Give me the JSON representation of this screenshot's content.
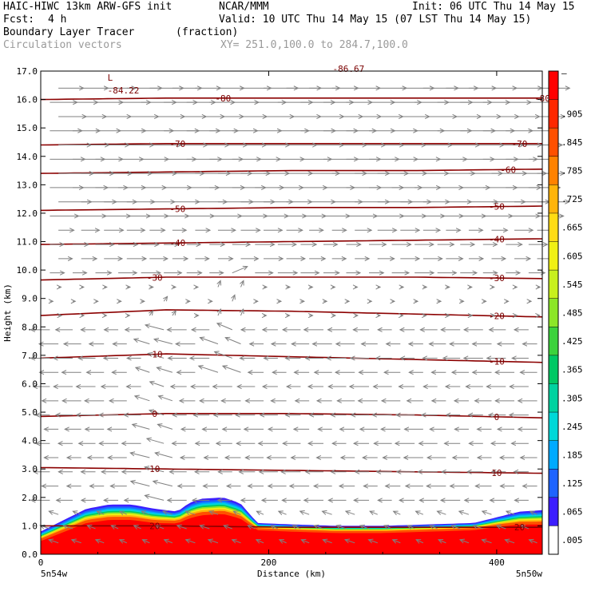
{
  "header": {
    "model": "HAIC-HIWC 13km ARW-GFS init",
    "center": "NCAR/MMM",
    "init": "Init: 06 UTC Thu 14 May 15",
    "fcst_label": "Fcst:",
    "fcst_value": "4 h",
    "valid": "Valid: 10 UTC Thu 14 May 15 (07 LST Thu 14 May 15)",
    "field_name": "Boundary Layer Tracer",
    "field_units": "(fraction)",
    "vector_name": "Circulation vectors",
    "xsec_endpoints": "XY= 251.0,100.0 to 284.7,100.0"
  },
  "colors": {
    "contour": "#8b0000",
    "vector": "#808080",
    "shading_low": "#1e3cff",
    "shading_high": "#ff0000"
  },
  "chart_data": {
    "type": "heatmap",
    "xlabel": "Distance (km)",
    "ylabel": "Height (km)",
    "xlim": [
      0,
      440
    ],
    "ylim": [
      0,
      17
    ],
    "x_ticks": [
      0,
      200,
      400
    ],
    "y_ticks": [
      "0.0",
      "1.0",
      "2.0",
      "3.0",
      "4.0",
      "5.0",
      "6.0",
      "7.0",
      "8.0",
      "9.0",
      "10.0",
      "11.0",
      "12.0",
      "13.0",
      "14.0",
      "15.0",
      "16.0",
      "17.0"
    ],
    "left_end_label": "5n54w",
    "right_end_label": "5n50w",
    "colorbar": {
      "labels": [
        ".005",
        ".065",
        ".125",
        ".185",
        ".245",
        ".305",
        ".365",
        ".425",
        ".485",
        ".545",
        ".605",
        ".665",
        ".725",
        ".785",
        ".845",
        ".905"
      ],
      "top_label": "–",
      "colors": [
        "#ffffff",
        "#3c1eff",
        "#1e64ff",
        "#00aaff",
        "#00d8d8",
        "#00d2a0",
        "#00c864",
        "#3cd23c",
        "#8ce628",
        "#c8f01e",
        "#f0f014",
        "#ffdc14",
        "#ffb40a",
        "#ff8200",
        "#ff5000",
        "#ff2800",
        "#ff0000"
      ]
    },
    "tracer_top_km": {
      "x": [
        0,
        20,
        40,
        60,
        80,
        100,
        120,
        130,
        140,
        160,
        175,
        190,
        220,
        260,
        300,
        340,
        380,
        400,
        420,
        440
      ],
      "top": [
        0.8,
        1.2,
        1.6,
        1.75,
        1.75,
        1.6,
        1.5,
        1.8,
        1.95,
        2.0,
        1.8,
        1.1,
        1.05,
        1.0,
        1.0,
        1.05,
        1.1,
        1.3,
        1.5,
        1.55
      ],
      "core_top": [
        0.45,
        0.75,
        1.05,
        1.15,
        1.15,
        1.05,
        1.05,
        1.2,
        1.3,
        1.35,
        1.2,
        0.85,
        0.8,
        0.75,
        0.75,
        0.8,
        0.85,
        0.95,
        1.0,
        1.0
      ]
    },
    "contours": [
      {
        "label": "20",
        "label_x": [
          100,
          420
        ],
        "y": [
          1.0,
          1.0,
          0.95,
          0.95,
          0.95
        ]
      },
      {
        "label": "10",
        "label_x": [
          100,
          400
        ],
        "y": [
          3.05,
          3.0,
          2.95,
          2.9,
          2.85
        ]
      },
      {
        "label": "0",
        "label_x": [
          100,
          400
        ],
        "y": [
          4.85,
          4.95,
          4.95,
          4.9,
          4.8
        ]
      },
      {
        "label": "-10",
        "label_x": [
          100,
          400
        ],
        "y": [
          6.9,
          7.05,
          6.95,
          6.85,
          6.75
        ]
      },
      {
        "label": "-20",
        "label_x": [
          400
        ],
        "y": [
          8.4,
          8.6,
          8.55,
          8.45,
          8.35
        ]
      },
      {
        "label": "-30",
        "label_x": [
          100,
          400
        ],
        "y": [
          9.65,
          9.75,
          9.75,
          9.75,
          9.7
        ]
      },
      {
        "label": "-40",
        "label_x": [
          120,
          400
        ],
        "y": [
          10.9,
          10.95,
          11.0,
          11.05,
          11.1
        ]
      },
      {
        "label": "-50",
        "label_x": [
          120,
          400
        ],
        "y": [
          12.1,
          12.15,
          12.2,
          12.2,
          12.25
        ]
      },
      {
        "label": "-60",
        "label_x": [
          410
        ],
        "y": [
          13.4,
          13.45,
          13.5,
          13.5,
          13.55
        ]
      },
      {
        "label": "-70",
        "label_x": [
          120,
          420
        ],
        "y": [
          14.4,
          14.45,
          14.45,
          14.45,
          14.45
        ]
      },
      {
        "label": "-80",
        "label_x": [
          160,
          440
        ],
        "y": [
          16.0,
          16.05,
          16.05,
          16.05,
          16.05
        ]
      }
    ],
    "min_label": {
      "text": "-84.22",
      "x": 60,
      "y": 16.6,
      "marker": "L"
    },
    "top_cut_label": {
      "text": "-86.67",
      "x": 270,
      "y": 17.0
    }
  }
}
